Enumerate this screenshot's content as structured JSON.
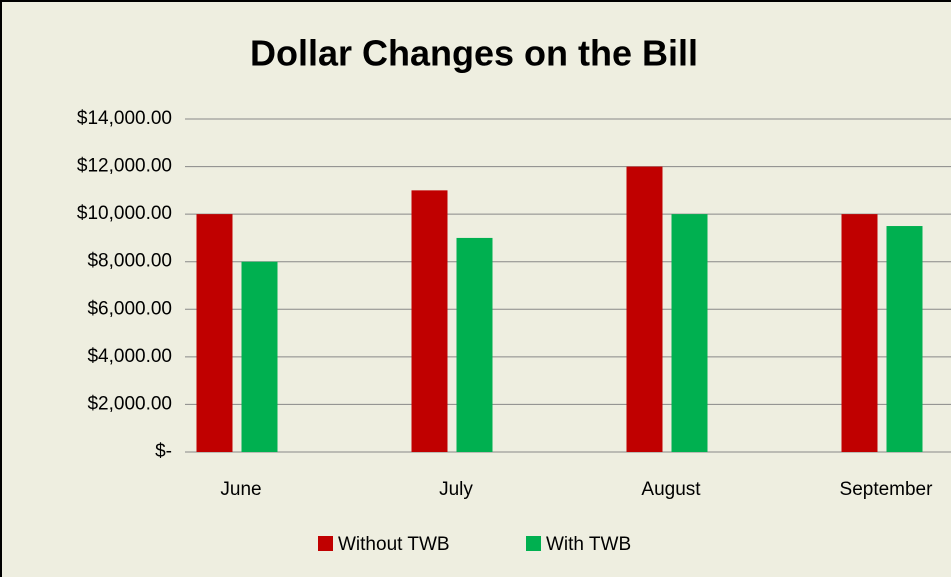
{
  "chart_data": {
    "type": "bar",
    "title": "Dollar Changes on the Bill",
    "categories": [
      "June",
      "July",
      "August",
      "September"
    ],
    "series": [
      {
        "name": "Without TWB",
        "color": "#c00000",
        "values": [
          10000,
          11000,
          12000,
          10000
        ]
      },
      {
        "name": "With TWB",
        "color": "#00b050",
        "values": [
          8000,
          9000,
          10000,
          9500
        ]
      }
    ],
    "ylim": [
      0,
      14000
    ],
    "yticks": [
      {
        "value": 0,
        "label": "$-"
      },
      {
        "value": 2000,
        "label": "$2,000.00"
      },
      {
        "value": 4000,
        "label": "$4,000.00"
      },
      {
        "value": 6000,
        "label": "$6,000.00"
      },
      {
        "value": 8000,
        "label": "$8,000.00"
      },
      {
        "value": 10000,
        "label": "$10,000.00"
      },
      {
        "value": 12000,
        "label": "$12,000.00"
      },
      {
        "value": 14000,
        "label": "$14,000.00"
      }
    ],
    "grid": true,
    "legend": "bottom"
  }
}
